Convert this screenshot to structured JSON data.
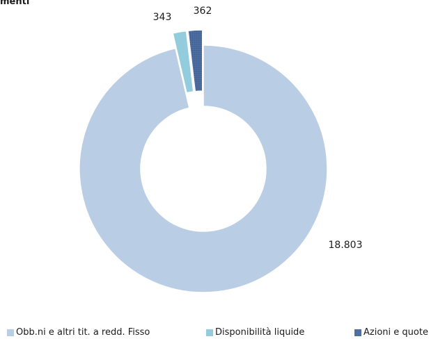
{
  "chart_data": {
    "type": "pie",
    "donut": true,
    "title": "menti",
    "slices": [
      {
        "label": "Obb.ni e altri tit. a redd. Fisso",
        "value": 18803,
        "value_label": "18.803",
        "color": "#b9cde5",
        "exploded": false
      },
      {
        "label": "Disponibilità liquide",
        "value": 343,
        "value_label": "343",
        "color": "#93cddd",
        "exploded": true
      },
      {
        "label": "Azioni e quote",
        "value": 362,
        "value_label": "362",
        "color": "#4f6fa3",
        "exploded": true
      }
    ],
    "legend_position": "bottom"
  }
}
